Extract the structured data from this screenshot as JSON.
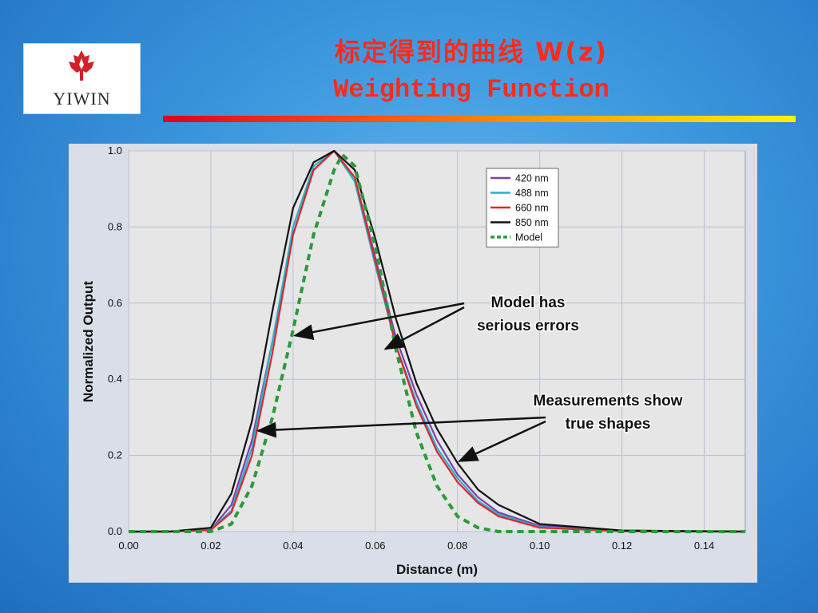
{
  "logo": {
    "text": "YIWIN",
    "brand_color": "#d41f26"
  },
  "slide": {
    "title_cn": "标定得到的曲线  W(z)",
    "title_en": "Weighting Function",
    "title_color": "#ff2a1a"
  },
  "chart_data": {
    "type": "line",
    "title": "",
    "xlabel": "Distance (m)",
    "ylabel": "Normalized Output",
    "xlim": [
      0,
      0.15
    ],
    "ylim": [
      0,
      1.0
    ],
    "xticks": [
      "0.00",
      "0.02",
      "0.04",
      "0.06",
      "0.08",
      "0.10",
      "0.12",
      "0.14"
    ],
    "yticks": [
      "0.0",
      "0.2",
      "0.4",
      "0.6",
      "0.8",
      "1.0"
    ],
    "grid": true,
    "legend_position": "top-right",
    "series": [
      {
        "name": "420 nm",
        "color": "#7b3fb0",
        "style": "solid",
        "x": [
          0,
          0.01,
          0.02,
          0.025,
          0.03,
          0.035,
          0.04,
          0.045,
          0.05,
          0.055,
          0.06,
          0.065,
          0.07,
          0.075,
          0.08,
          0.085,
          0.09,
          0.1,
          0.12,
          0.15
        ],
        "y": [
          0,
          0,
          0.005,
          0.07,
          0.24,
          0.5,
          0.78,
          0.95,
          1.0,
          0.93,
          0.72,
          0.51,
          0.36,
          0.24,
          0.15,
          0.09,
          0.05,
          0.015,
          0.002,
          0
        ]
      },
      {
        "name": "488 nm",
        "color": "#1fb6c8",
        "style": "solid",
        "x": [
          0,
          0.01,
          0.02,
          0.025,
          0.03,
          0.035,
          0.04,
          0.045,
          0.05,
          0.055,
          0.06,
          0.065,
          0.07,
          0.075,
          0.08,
          0.085,
          0.09,
          0.1,
          0.12,
          0.15
        ],
        "y": [
          0,
          0,
          0.005,
          0.055,
          0.22,
          0.5,
          0.8,
          0.96,
          1.0,
          0.92,
          0.7,
          0.49,
          0.34,
          0.22,
          0.14,
          0.08,
          0.045,
          0.012,
          0.001,
          0
        ]
      },
      {
        "name": "660 nm",
        "color": "#e0252f",
        "style": "solid",
        "x": [
          0,
          0.01,
          0.02,
          0.025,
          0.03,
          0.035,
          0.04,
          0.045,
          0.05,
          0.055,
          0.06,
          0.065,
          0.07,
          0.075,
          0.08,
          0.085,
          0.09,
          0.1,
          0.12,
          0.15
        ],
        "y": [
          0,
          0,
          0.004,
          0.05,
          0.2,
          0.47,
          0.78,
          0.95,
          1.0,
          0.93,
          0.71,
          0.49,
          0.33,
          0.21,
          0.13,
          0.075,
          0.04,
          0.01,
          0.001,
          0
        ]
      },
      {
        "name": "850 nm",
        "color": "#111111",
        "style": "solid",
        "x": [
          0,
          0.01,
          0.02,
          0.025,
          0.03,
          0.035,
          0.04,
          0.045,
          0.05,
          0.055,
          0.06,
          0.065,
          0.07,
          0.075,
          0.08,
          0.085,
          0.09,
          0.1,
          0.12,
          0.15
        ],
        "y": [
          0,
          0,
          0.01,
          0.1,
          0.29,
          0.58,
          0.85,
          0.97,
          1.0,
          0.95,
          0.77,
          0.56,
          0.39,
          0.27,
          0.18,
          0.11,
          0.07,
          0.02,
          0.003,
          0
        ]
      },
      {
        "name": "Model",
        "color": "#2a9a3a",
        "style": "dashed",
        "x": [
          0,
          0.02,
          0.025,
          0.03,
          0.035,
          0.04,
          0.045,
          0.05,
          0.052,
          0.055,
          0.06,
          0.065,
          0.07,
          0.075,
          0.08,
          0.085,
          0.09,
          0.1,
          0.15
        ],
        "y": [
          0,
          0.0,
          0.02,
          0.12,
          0.3,
          0.53,
          0.78,
          0.95,
          0.99,
          0.96,
          0.75,
          0.48,
          0.26,
          0.12,
          0.04,
          0.01,
          0.0,
          0,
          0
        ]
      }
    ],
    "annotations": [
      {
        "text": "Model has serious errors",
        "lines": [
          "Model has",
          "serious errors"
        ],
        "arrows_to": [
          [
            0.0405,
            0.515
          ],
          [
            0.0625,
            0.48
          ]
        ]
      },
      {
        "text": "Measurements show true shapes",
        "lines": [
          "Measurements show",
          "true shapes"
        ],
        "arrows_to": [
          [
            0.0315,
            0.265
          ],
          [
            0.0805,
            0.185
          ]
        ]
      }
    ]
  }
}
